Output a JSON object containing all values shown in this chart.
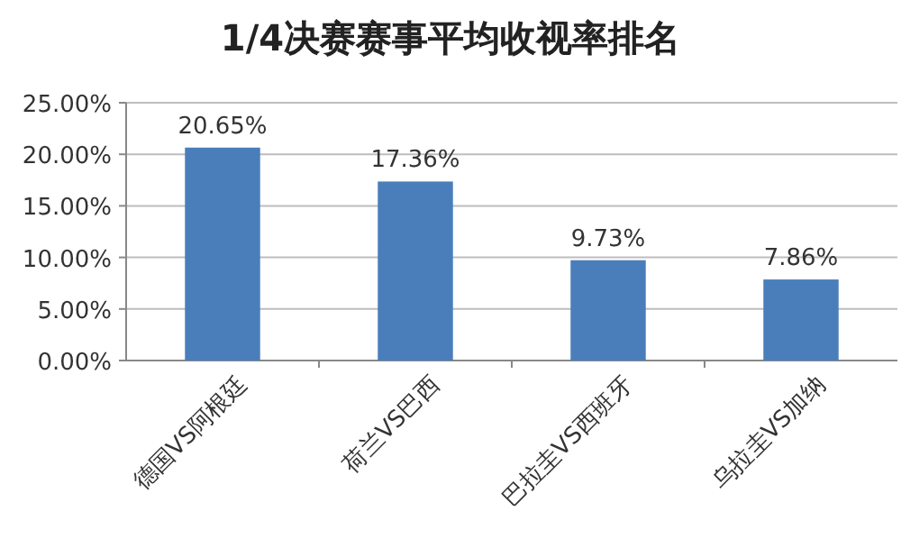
{
  "chart_data": {
    "type": "bar",
    "title": "1/4决赛赛事平均收视率排名",
    "categories": [
      "德国VS阿根廷",
      "荷兰VS巴西",
      "巴拉圭VS西班牙",
      "乌拉圭VS加纳"
    ],
    "values": [
      20.65,
      17.36,
      9.73,
      7.86
    ],
    "value_labels": [
      "20.65%",
      "17.36%",
      "9.73%",
      "7.86%"
    ],
    "color": "#4a7ebb",
    "ylim": [
      0,
      25
    ],
    "yticks": [
      {
        "value": 0,
        "label": "0.00%"
      },
      {
        "value": 5,
        "label": "5.00%"
      },
      {
        "value": 10,
        "label": "10.00%"
      },
      {
        "value": 15,
        "label": "15.00%"
      },
      {
        "value": 20,
        "label": "20.00%"
      },
      {
        "value": 25,
        "label": "25.00%"
      }
    ],
    "grid": "y"
  }
}
